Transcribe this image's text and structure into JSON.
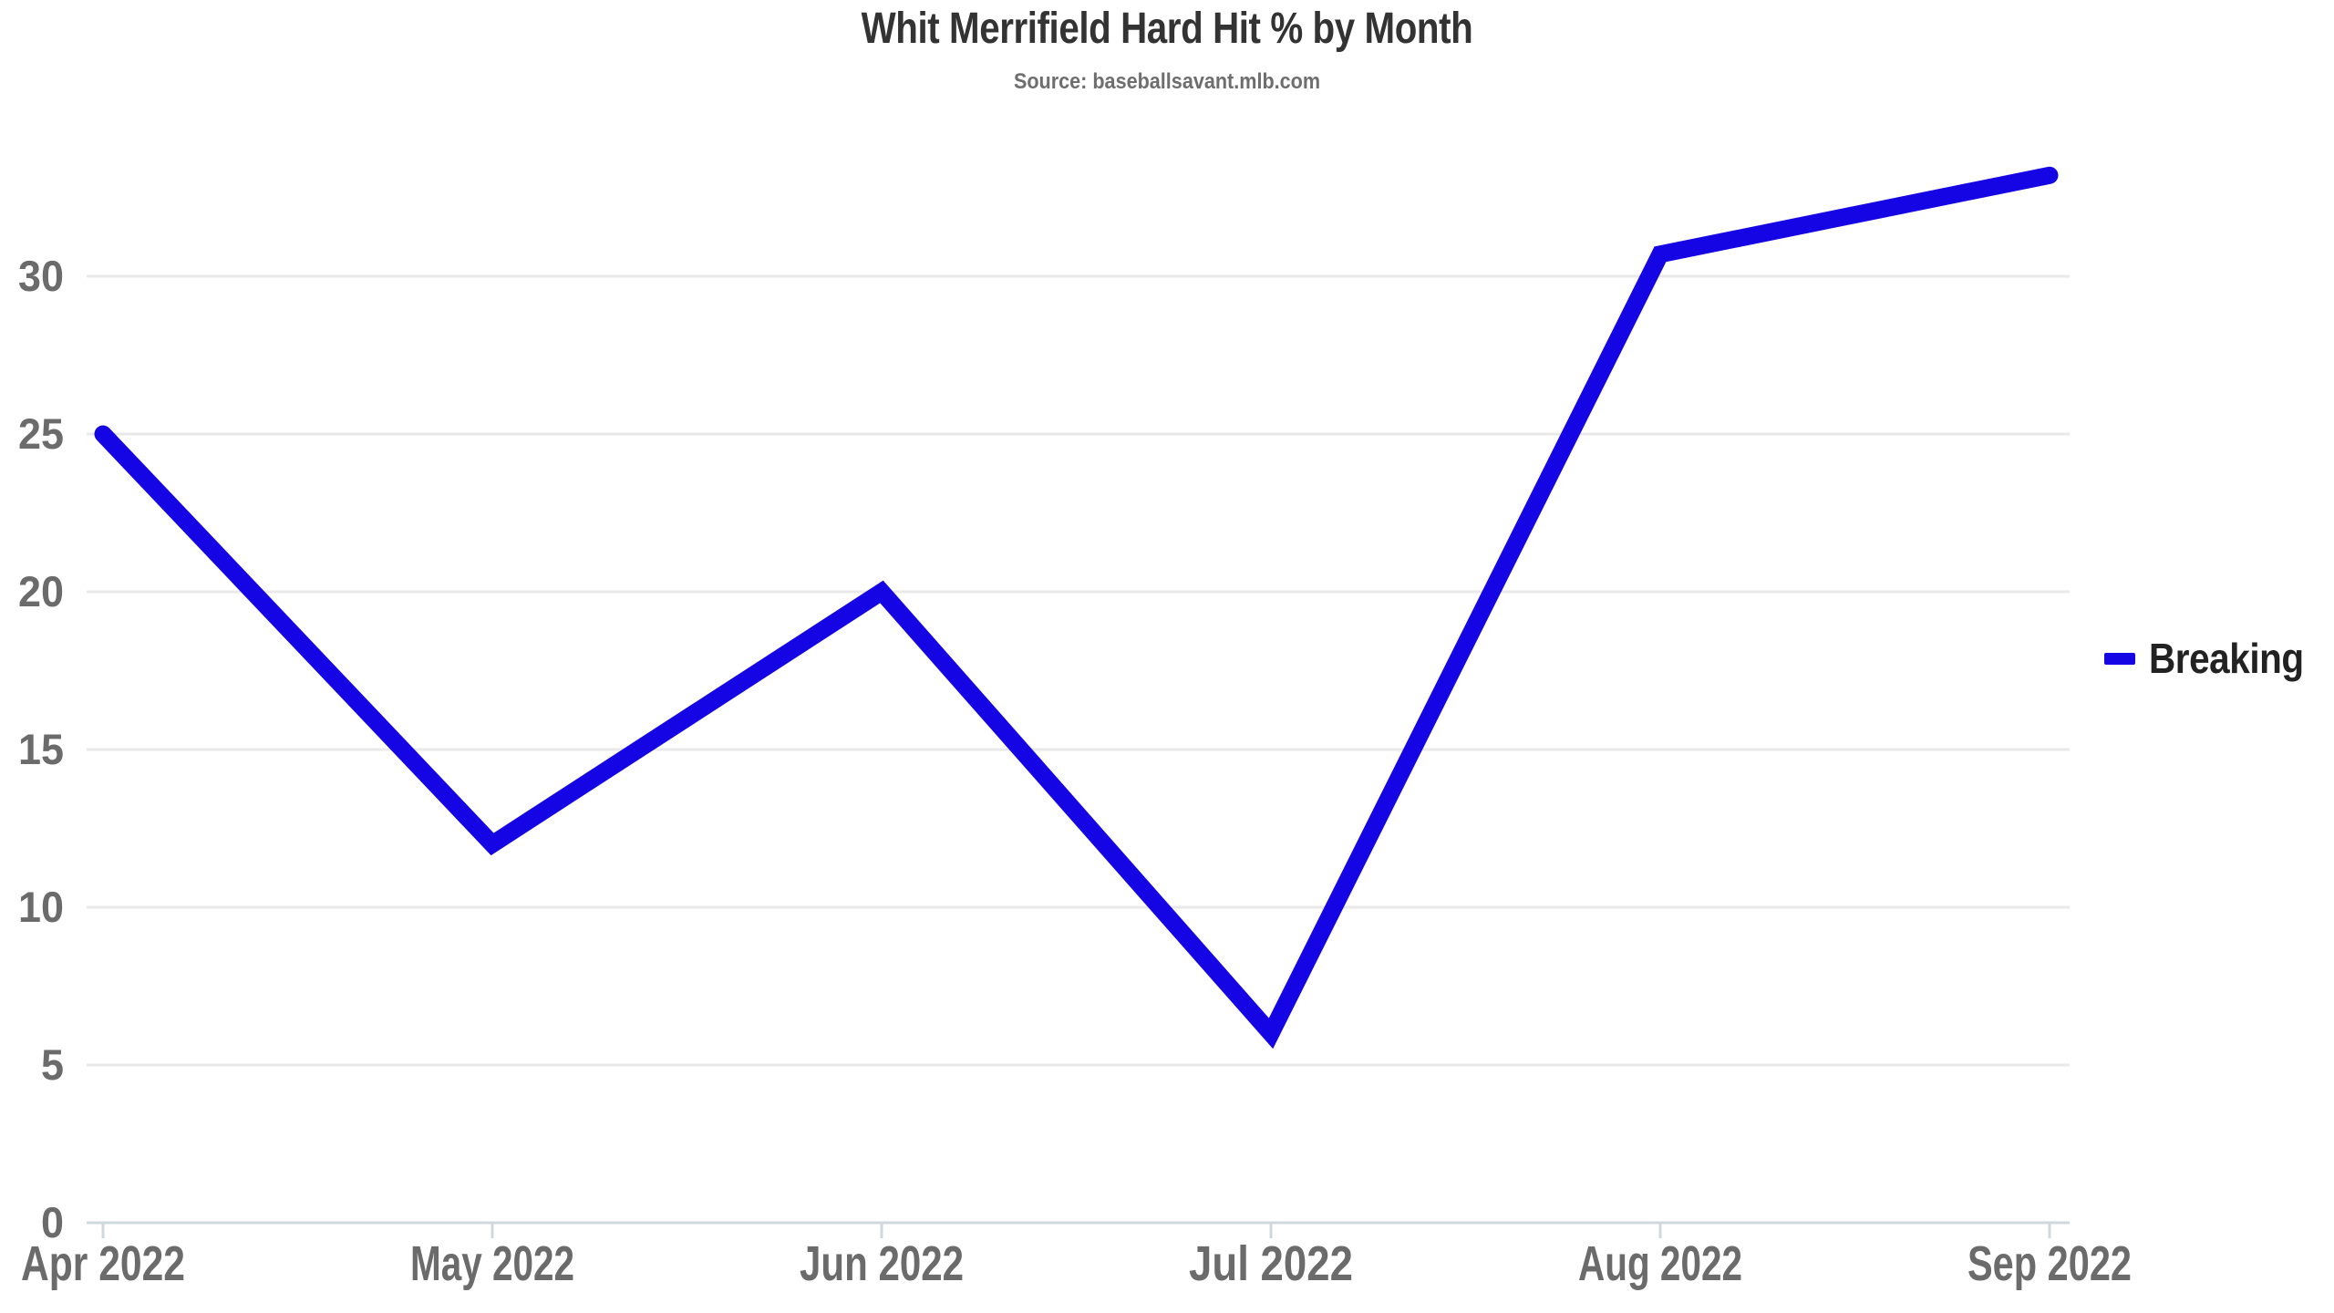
{
  "page": {
    "background": "#ffffff"
  },
  "chart_data": {
    "type": "line",
    "title": "Whit Merrifield Hard Hit % by Month",
    "subtitle": "Source: baseballsavant.mlb.com",
    "categories": [
      "Apr 2022",
      "May 2022",
      "Jun 2022",
      "Jul 2022",
      "Aug 2022",
      "Sep 2022"
    ],
    "series": [
      {
        "name": "Breaking",
        "color": "#1505E5",
        "values": [
          25,
          12,
          20,
          6,
          30.7,
          33.2
        ]
      }
    ],
    "yticks": [
      0,
      5,
      10,
      15,
      20,
      25,
      30
    ],
    "ylim": [
      0,
      35
    ],
    "xlabel": "",
    "ylabel": "",
    "grid": "horizontal",
    "legend_position": "right",
    "label_color": "#6b6b6b",
    "title_color": "#333333",
    "subtitle_color": "#6e6e6e",
    "grid_color": "#e9e9e9",
    "axis_color": "#cfd8dc",
    "line_width": 19
  }
}
